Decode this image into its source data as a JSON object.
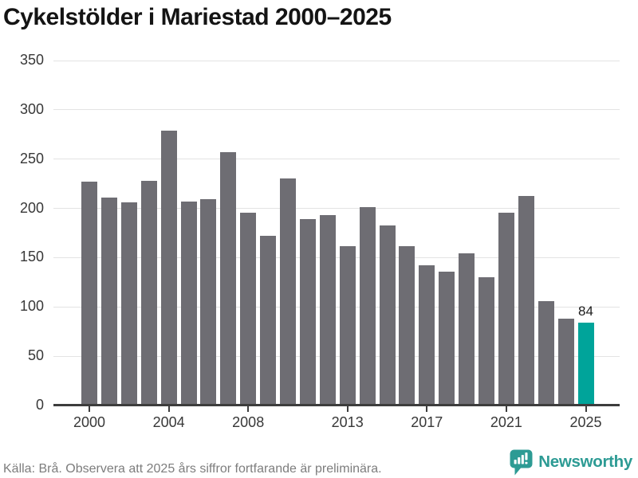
{
  "header": {
    "title": "Cykelstölder i Mariestad 2000–2025"
  },
  "chart_data": {
    "type": "bar",
    "title": "Cykelstölder i Mariestad 2000–2025",
    "categories": [
      "2000",
      "2001",
      "2002",
      "2003",
      "2004",
      "2005",
      "2006",
      "2007",
      "2008",
      "2009",
      "2010",
      "2011",
      "2012",
      "2013",
      "2014",
      "2015",
      "2016",
      "2017",
      "2018",
      "2019",
      "2020",
      "2021",
      "2022",
      "2023",
      "2024",
      "2025"
    ],
    "values": [
      227,
      211,
      206,
      228,
      279,
      207,
      209,
      257,
      196,
      172,
      230,
      189,
      193,
      162,
      201,
      183,
      162,
      142,
      136,
      154,
      130,
      196,
      213,
      106,
      88,
      84
    ],
    "ylim": [
      0,
      350
    ],
    "yticks": [
      0,
      50,
      100,
      150,
      200,
      250,
      300,
      350
    ],
    "xtick_labels": [
      "2000",
      "2004",
      "2008",
      "2013",
      "2017",
      "2021",
      "2025"
    ],
    "xtick_indices": [
      0,
      4,
      8,
      13,
      17,
      21,
      25
    ],
    "grid": "horizontal",
    "legend": "none",
    "highlight_index": 25,
    "data_label": {
      "index": 25,
      "text": "84"
    },
    "colors": {
      "bar": "#6e6d73",
      "highlight": "#00a49a",
      "grid": "#e3e3e3",
      "axis": "#3d3d3d",
      "tick_text": "#383838",
      "value_label": "#1c1c1c"
    }
  },
  "footer": {
    "source_note": "Källa: Brå. Observera att 2025 års siffror fortfarande är preliminära.",
    "brand": "Newsworthy",
    "brand_color": "#2d9b94",
    "icon": "newsworthy-speech-bubble-barchart-icon"
  }
}
